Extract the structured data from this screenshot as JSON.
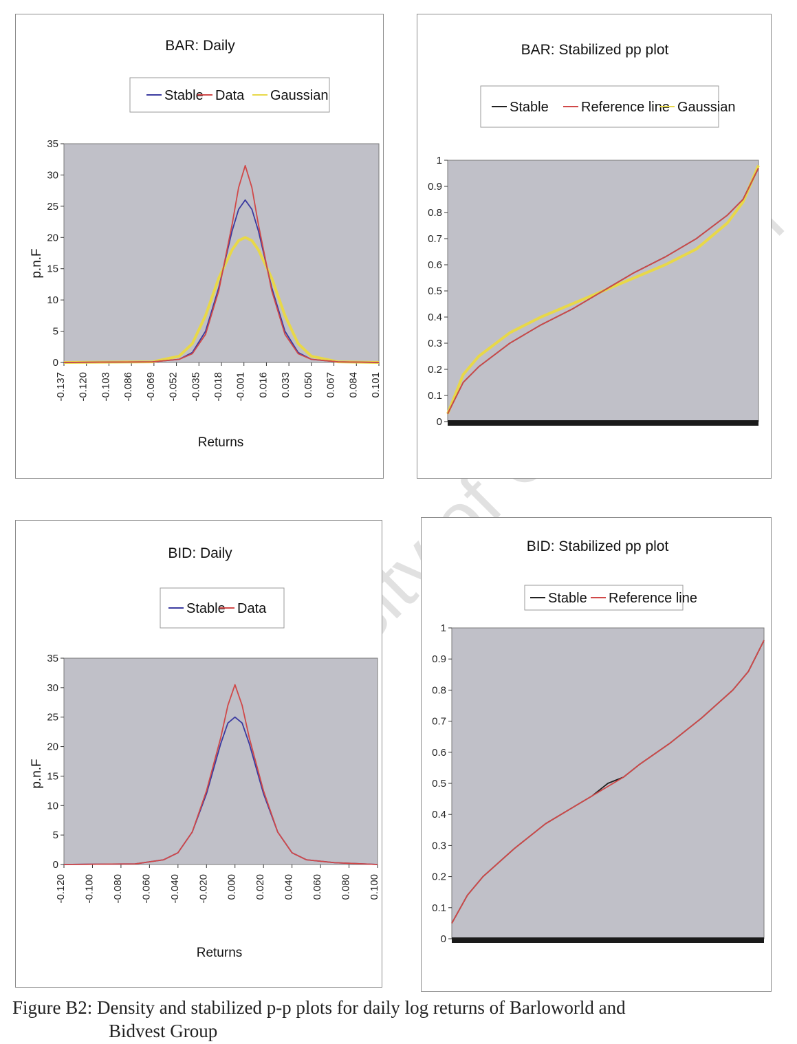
{
  "figure": {
    "caption_line1": "Figure B2: Density and stabilized p-p plots for daily log returns of Barloworld and",
    "caption_line2": "Bidvest Group",
    "watermark": "University of Cape Town",
    "colors": {
      "plot_bg": "#c0c0c8",
      "stable": "#3a3aa0",
      "data": "#d04848",
      "gaussian": "#e8d848",
      "pp_stable": "#202020",
      "reference": "#d04848"
    }
  },
  "chart_data": [
    {
      "id": "bar-daily",
      "type": "line",
      "title": "BAR: Daily",
      "xlabel": "Returns",
      "ylabel": "p.n.F",
      "ylim": [
        0,
        35
      ],
      "yticks": [
        "0",
        "5",
        "10",
        "15",
        "20",
        "25",
        "30",
        "35"
      ],
      "xticks": [
        "-0.137",
        "-0.120",
        "-0.103",
        "-0.086",
        "-0.069",
        "-0.052",
        "-0.035",
        "-0.018",
        "-0.001",
        "0.016",
        "0.033",
        "0.050",
        "0.067",
        "0.084",
        "0.101"
      ],
      "xlim": [
        -0.137,
        0.101
      ],
      "legend": [
        "Stable",
        "Data",
        "Gaussian"
      ],
      "series": [
        {
          "name": "Stable",
          "x": [
            -0.137,
            -0.07,
            -0.05,
            -0.04,
            -0.03,
            -0.02,
            -0.01,
            -0.005,
            0.0,
            0.005,
            0.01,
            0.02,
            0.03,
            0.04,
            0.05,
            0.07,
            0.101
          ],
          "y": [
            0,
            0.1,
            0.5,
            1.6,
            5,
            12,
            21,
            24.5,
            26,
            24.5,
            21,
            12,
            5,
            1.6,
            0.5,
            0.1,
            0
          ]
        },
        {
          "name": "Data",
          "x": [
            -0.137,
            -0.07,
            -0.05,
            -0.04,
            -0.03,
            -0.02,
            -0.01,
            -0.005,
            0.0,
            0.005,
            0.01,
            0.02,
            0.03,
            0.04,
            0.05,
            0.07,
            0.101
          ],
          "y": [
            0,
            0.1,
            0.5,
            1.4,
            4.5,
            11.5,
            22,
            28,
            31.5,
            28,
            22,
            11.5,
            4.5,
            1.4,
            0.5,
            0.1,
            0
          ]
        },
        {
          "name": "Gaussian",
          "x": [
            -0.137,
            -0.07,
            -0.05,
            -0.04,
            -0.03,
            -0.02,
            -0.01,
            -0.005,
            0.0,
            0.005,
            0.01,
            0.02,
            0.03,
            0.04,
            0.05,
            0.07,
            0.101
          ],
          "y": [
            0,
            0.1,
            1.0,
            3.0,
            7.5,
            13.5,
            18,
            19.5,
            20,
            19.5,
            18,
            13.5,
            7.5,
            3.0,
            1.0,
            0.1,
            0
          ]
        }
      ]
    },
    {
      "id": "bar-pp",
      "type": "line",
      "title": "BAR: Stabilized pp plot",
      "ylim": [
        0,
        1
      ],
      "yticks": [
        "0",
        "0.1",
        "0.2",
        "0.3",
        "0.4",
        "0.5",
        "0.6",
        "0.7",
        "0.8",
        "0.9",
        "1"
      ],
      "xlim": [
        0,
        1
      ],
      "legend": [
        "Stable",
        "Reference line",
        "Gaussian"
      ],
      "series": [
        {
          "name": "Stable",
          "x": [
            0,
            0.05,
            0.1,
            0.2,
            0.3,
            0.4,
            0.5,
            0.6,
            0.7,
            0.8,
            0.9,
            0.95,
            1
          ],
          "y": [
            0.03,
            0.15,
            0.21,
            0.3,
            0.37,
            0.43,
            0.5,
            0.57,
            0.63,
            0.7,
            0.79,
            0.85,
            0.97
          ]
        },
        {
          "name": "Reference line",
          "x": [
            0,
            0.05,
            0.1,
            0.2,
            0.3,
            0.4,
            0.5,
            0.6,
            0.7,
            0.8,
            0.9,
            0.95,
            1
          ],
          "y": [
            0.03,
            0.15,
            0.21,
            0.3,
            0.37,
            0.43,
            0.5,
            0.57,
            0.63,
            0.7,
            0.79,
            0.85,
            0.97
          ]
        },
        {
          "name": "Gaussian",
          "x": [
            0,
            0.05,
            0.1,
            0.2,
            0.3,
            0.4,
            0.5,
            0.6,
            0.7,
            0.8,
            0.9,
            0.95,
            1
          ],
          "y": [
            0.03,
            0.18,
            0.25,
            0.34,
            0.4,
            0.45,
            0.5,
            0.55,
            0.6,
            0.66,
            0.76,
            0.84,
            0.98
          ]
        }
      ]
    },
    {
      "id": "bid-daily",
      "type": "line",
      "title": "BID: Daily",
      "xlabel": "Returns",
      "ylabel": "p.n.F",
      "ylim": [
        0,
        35
      ],
      "yticks": [
        "0",
        "5",
        "10",
        "15",
        "20",
        "25",
        "30",
        "35"
      ],
      "xticks": [
        "-0.120",
        "-0.100",
        "-0.080",
        "-0.060",
        "-0.040",
        "-0.020",
        "0.000",
        "0.020",
        "0.040",
        "0.060",
        "0.080",
        "0.100"
      ],
      "xlim": [
        -0.12,
        0.1
      ],
      "legend": [
        "Stable",
        "Data"
      ],
      "series": [
        {
          "name": "Stable",
          "x": [
            -0.12,
            -0.07,
            -0.05,
            -0.04,
            -0.03,
            -0.02,
            -0.01,
            -0.005,
            0.0,
            0.005,
            0.01,
            0.02,
            0.03,
            0.04,
            0.05,
            0.07,
            0.1
          ],
          "y": [
            0,
            0.1,
            0.8,
            2.0,
            5.5,
            12,
            20.5,
            24,
            25,
            24,
            20.5,
            12,
            5.5,
            2.0,
            0.8,
            0.3,
            0
          ]
        },
        {
          "name": "Data",
          "x": [
            -0.12,
            -0.07,
            -0.05,
            -0.04,
            -0.03,
            -0.02,
            -0.01,
            -0.005,
            0.0,
            0.005,
            0.01,
            0.02,
            0.03,
            0.04,
            0.05,
            0.07,
            0.1
          ],
          "y": [
            0,
            0.1,
            0.8,
            2.0,
            5.5,
            12.5,
            21.5,
            27,
            30.5,
            27,
            21.5,
            12.5,
            5.5,
            2.0,
            0.8,
            0.3,
            0
          ]
        }
      ]
    },
    {
      "id": "bid-pp",
      "type": "line",
      "title": "BID: Stabilized pp plot",
      "ylim": [
        0,
        1
      ],
      "yticks": [
        "0",
        "0.1",
        "0.2",
        "0.3",
        "0.4",
        "0.5",
        "0.6",
        "0.7",
        "0.8",
        "0.9",
        "1"
      ],
      "xlim": [
        0,
        1
      ],
      "legend": [
        "Stable",
        "Reference line"
      ],
      "series": [
        {
          "name": "Stable",
          "x": [
            0,
            0.05,
            0.1,
            0.2,
            0.3,
            0.4,
            0.45,
            0.5,
            0.55,
            0.6,
            0.7,
            0.8,
            0.9,
            0.95,
            1
          ],
          "y": [
            0.05,
            0.14,
            0.2,
            0.29,
            0.37,
            0.43,
            0.46,
            0.5,
            0.52,
            0.56,
            0.63,
            0.71,
            0.8,
            0.86,
            0.96
          ]
        },
        {
          "name": "Reference line",
          "x": [
            0,
            0.05,
            0.1,
            0.2,
            0.3,
            0.4,
            0.45,
            0.5,
            0.55,
            0.6,
            0.7,
            0.8,
            0.9,
            0.95,
            1
          ],
          "y": [
            0.05,
            0.14,
            0.2,
            0.29,
            0.37,
            0.43,
            0.46,
            0.49,
            0.52,
            0.56,
            0.63,
            0.71,
            0.8,
            0.86,
            0.96
          ]
        }
      ]
    }
  ]
}
